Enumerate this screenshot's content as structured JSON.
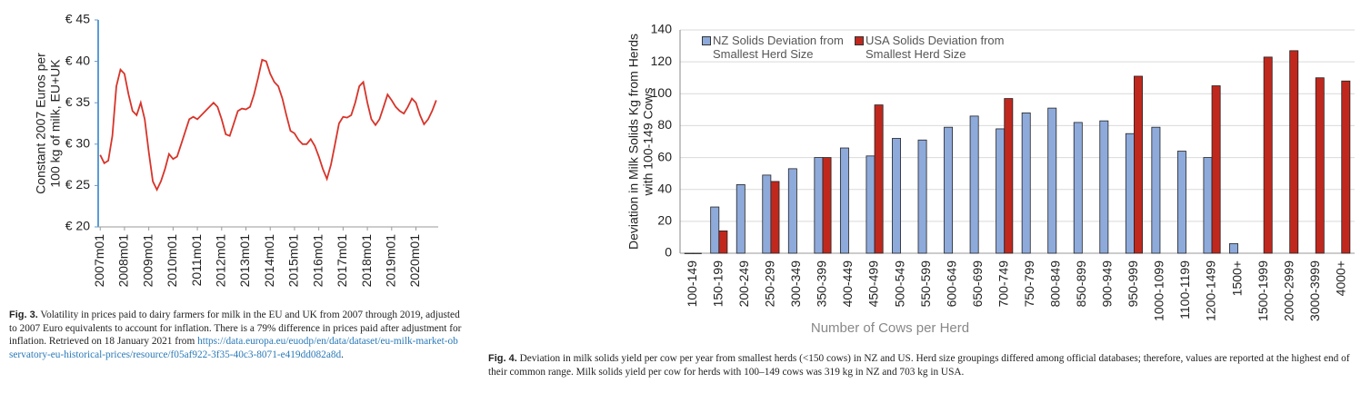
{
  "chart_data": [
    {
      "type": "line",
      "y_label": [
        "Constant 2007 Euros per",
        "100 kg of milk, EU+UK"
      ],
      "categories": [
        "2007m01",
        null,
        null,
        null,
        null,
        null,
        "2008m01",
        null,
        null,
        null,
        null,
        null,
        "2009m01",
        null,
        null,
        null,
        null,
        null,
        "2010m01",
        null,
        null,
        null,
        null,
        null,
        "2011m01",
        null,
        null,
        null,
        null,
        null,
        "2012m01",
        null,
        null,
        null,
        null,
        null,
        "2013m01",
        null,
        null,
        null,
        null,
        null,
        "2014m01",
        null,
        null,
        null,
        null,
        null,
        "2015m01",
        null,
        null,
        null,
        null,
        null,
        "2016m01",
        null,
        null,
        null,
        null,
        null,
        "2017m01",
        null,
        null,
        null,
        null,
        null,
        "2018m01",
        null,
        null,
        null,
        null,
        null,
        "2019m01",
        null,
        null,
        null,
        null,
        null,
        "2020m01",
        null,
        null,
        null,
        null,
        null
      ],
      "values": [
        28.7,
        27.7,
        28,
        31,
        37,
        39,
        38.5,
        36,
        34,
        33.5,
        35,
        33,
        29,
        25.5,
        24.5,
        25.5,
        27,
        28.8,
        28.2,
        28.5,
        30,
        31.5,
        33,
        33.3,
        33,
        33.5,
        34,
        34.5,
        35,
        34.5,
        33,
        31.2,
        31,
        32.5,
        34,
        34.3,
        34.2,
        34.5,
        36,
        38,
        40.2,
        40,
        38.5,
        37.5,
        37,
        35.5,
        33.5,
        31.6,
        31.3,
        30.5,
        30,
        30,
        30.6,
        29.8,
        28.5,
        27,
        25.8,
        27.5,
        30,
        32.5,
        33.3,
        33.2,
        33.5,
        35,
        37,
        37.5,
        35,
        33,
        32.3,
        33,
        34.5,
        36,
        35.3,
        34.5,
        34,
        33.7,
        34.5,
        35.5,
        35,
        33.5,
        32.4,
        33,
        34,
        35.3
      ],
      "color": "#d7342a",
      "ylim": [
        20,
        45
      ],
      "yticks": [
        {
          "value": 20,
          "label": "€ 20"
        },
        {
          "value": 25,
          "label": "€ 25"
        },
        {
          "value": 30,
          "label": "€ 30"
        },
        {
          "value": 35,
          "label": "€ 35"
        },
        {
          "value": 40,
          "label": "€ 40"
        },
        {
          "value": 45,
          "label": "€ 45"
        }
      ],
      "grid": false,
      "caption_label": "Fig. 3.",
      "caption": "Volatility in prices paid to dairy farmers for milk in the EU and UK from 2007 through 2019, adjusted to 2007 Euro equivalents to account for inflation. There is a 79% difference in prices paid after adjustment for inflation. Retrieved on 18 January 2021 from",
      "caption_link": "https://data.europa.eu/euodp/en/data/dataset/eu-milk-market-observatory-eu-historical-prices/resource/f05af922-3f35-40c3-8071-e419dd082a8d",
      "caption_end": "."
    },
    {
      "type": "bar",
      "x_label": "Number of Cows per Herd",
      "y_label": [
        "Deviation in Milk Solids Kg from Herds",
        "with 100-149 Cows"
      ],
      "categories": [
        "100-149",
        "150-199",
        "200-249",
        "250-299",
        "300-349",
        "350-399",
        "400-449",
        "450-499",
        "500-549",
        "550-599",
        "600-649",
        "650-699",
        "700-749",
        "750-799",
        "800-849",
        "850-899",
        "900-949",
        "950-999",
        "1000-1099",
        "1100-1199",
        "1200-1499",
        "1500+",
        "1500-1999",
        "2000-2999",
        "3000-3999",
        "4000+"
      ],
      "series": [
        {
          "name": "NZ Solids Deviation from Smallest Herd Size",
          "color": "#8eaadb",
          "values": [
            0,
            29,
            43,
            49,
            53,
            60,
            66,
            61,
            72,
            71,
            79,
            86,
            78,
            88,
            91,
            82,
            83,
            75,
            79,
            64,
            60,
            6,
            null,
            null,
            null,
            null
          ]
        },
        {
          "name": "USA Solids Deviation from Smallest Herd Size",
          "color": "#c0281e",
          "values": [
            0,
            14,
            null,
            45,
            null,
            60,
            null,
            93,
            null,
            null,
            null,
            null,
            97,
            null,
            null,
            null,
            null,
            111,
            null,
            null,
            105,
            null,
            123,
            127,
            110,
            108
          ]
        }
      ],
      "ylim": [
        0,
        140
      ],
      "yticks": [
        0,
        20,
        40,
        60,
        80,
        100,
        120,
        140
      ],
      "grid": true,
      "legend": "top-left",
      "caption_label": "Fig. 4.",
      "caption": "Deviation in milk solids yield per cow per year from smallest herds (<150 cows) in NZ and US. Herd size groupings differed among official databases; therefore, values are reported at the highest end of their common range. Milk solids yield per cow for herds with 100–149 cows was 319 kg in NZ and 703 kg in USA."
    }
  ]
}
